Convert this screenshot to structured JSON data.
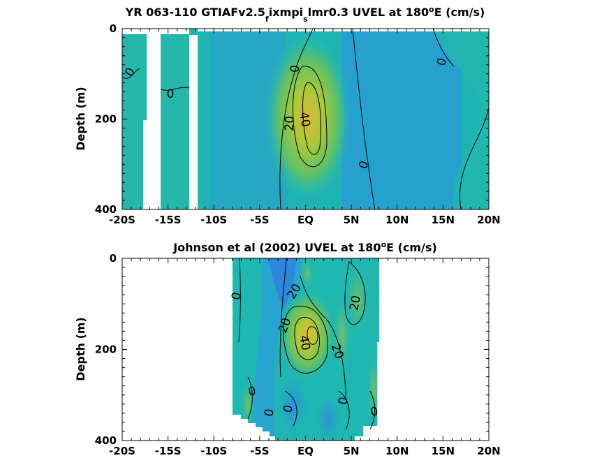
{
  "chart_data": [
    {
      "type": "heatmap",
      "subtype": "filled-contour",
      "title_parts": [
        "YR 063-110 GTIAFv2.5",
        "f",
        "ixmpi",
        "s",
        "lmr0.3 UVEL at 180",
        "o",
        "E (cm/s)"
      ],
      "title": "YR 063-110 GTIAFv2.5_fixmpi_slmr0.3 UVEL at 180°E (cm/s)",
      "ylabel": "Depth (m)",
      "xlabel": "",
      "xlim": [
        -20,
        20
      ],
      "ylim": [
        400,
        0
      ],
      "y_reversed": true,
      "x_ticks": [
        "-20S",
        "-15S",
        "-10S",
        "-5S",
        "EQ",
        "5N",
        "10N",
        "15N",
        "20N"
      ],
      "y_ticks": [
        "0",
        "200",
        "400"
      ],
      "colormap": "parula",
      "core": {
        "lat": 0.7,
        "depth": 165,
        "max_cms": 45
      },
      "contour_labels": [
        "0",
        "0",
        "0",
        "0",
        "0",
        "20",
        "40"
      ],
      "gaps_lat": [
        [
          -17.8,
          -16.0
        ],
        [
          -12.0,
          -11.0
        ]
      ]
    },
    {
      "type": "heatmap",
      "subtype": "filled-contour",
      "title_parts": [
        "Johnson et al (2002) UVEL at 180",
        "o",
        "E (cm/s)"
      ],
      "title": "Johnson et al (2002) UVEL at 180°E (cm/s)",
      "ylabel": "Depth (m)",
      "xlabel": "",
      "xlim": [
        -20,
        20
      ],
      "ylim": [
        400,
        0
      ],
      "y_reversed": true,
      "x_ticks": [
        "-20S",
        "-15S",
        "-10S",
        "-5S",
        "EQ",
        "5N",
        "10N",
        "15N",
        "20N"
      ],
      "y_ticks": [
        "0",
        "200",
        "400"
      ],
      "colormap": "parula",
      "data_extent_lat": [
        -8,
        8
      ],
      "core": {
        "lat": 0.5,
        "depth": 165,
        "max_cms": 45
      },
      "contour_labels": [
        "0",
        "20",
        "20",
        "20",
        "40",
        "20",
        "0",
        "0",
        "0",
        "0",
        "0"
      ]
    }
  ]
}
